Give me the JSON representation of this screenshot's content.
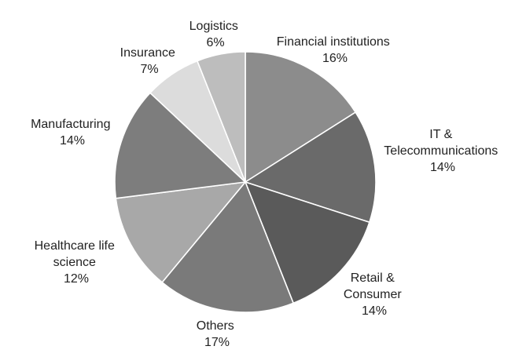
{
  "chart_data": {
    "type": "pie",
    "title": "",
    "slices": [
      {
        "name": "Financial institutions",
        "label_lines": [
          "Financial institutions"
        ],
        "pct_label": "16%",
        "value": 16,
        "color": "#8c8c8c"
      },
      {
        "name": "IT & Telecommunications",
        "label_lines": [
          "IT &",
          "Telecommunications"
        ],
        "pct_label": "14%",
        "value": 14,
        "color": "#6a6a6a"
      },
      {
        "name": "Retail & Consumer",
        "label_lines": [
          "Retail &",
          "Consumer"
        ],
        "pct_label": "14%",
        "value": 14,
        "color": "#5a5a5a"
      },
      {
        "name": "Others",
        "label_lines": [
          "Others"
        ],
        "pct_label": "17%",
        "value": 17,
        "color": "#7a7a7a"
      },
      {
        "name": "Healthcare life science",
        "label_lines": [
          "Healthcare life",
          "science"
        ],
        "pct_label": "12%",
        "value": 12,
        "color": "#a8a8a8"
      },
      {
        "name": "Manufacturing",
        "label_lines": [
          "Manufacturing"
        ],
        "pct_label": "14%",
        "value": 14,
        "color": "#7d7d7d"
      },
      {
        "name": "Insurance",
        "label_lines": [
          "Insurance"
        ],
        "pct_label": "7%",
        "value": 7,
        "color": "#dcdcdc"
      },
      {
        "name": "Logistics",
        "label_lines": [
          "Logistics"
        ],
        "pct_label": "6%",
        "value": 6,
        "color": "#bdbdbd"
      }
    ]
  }
}
